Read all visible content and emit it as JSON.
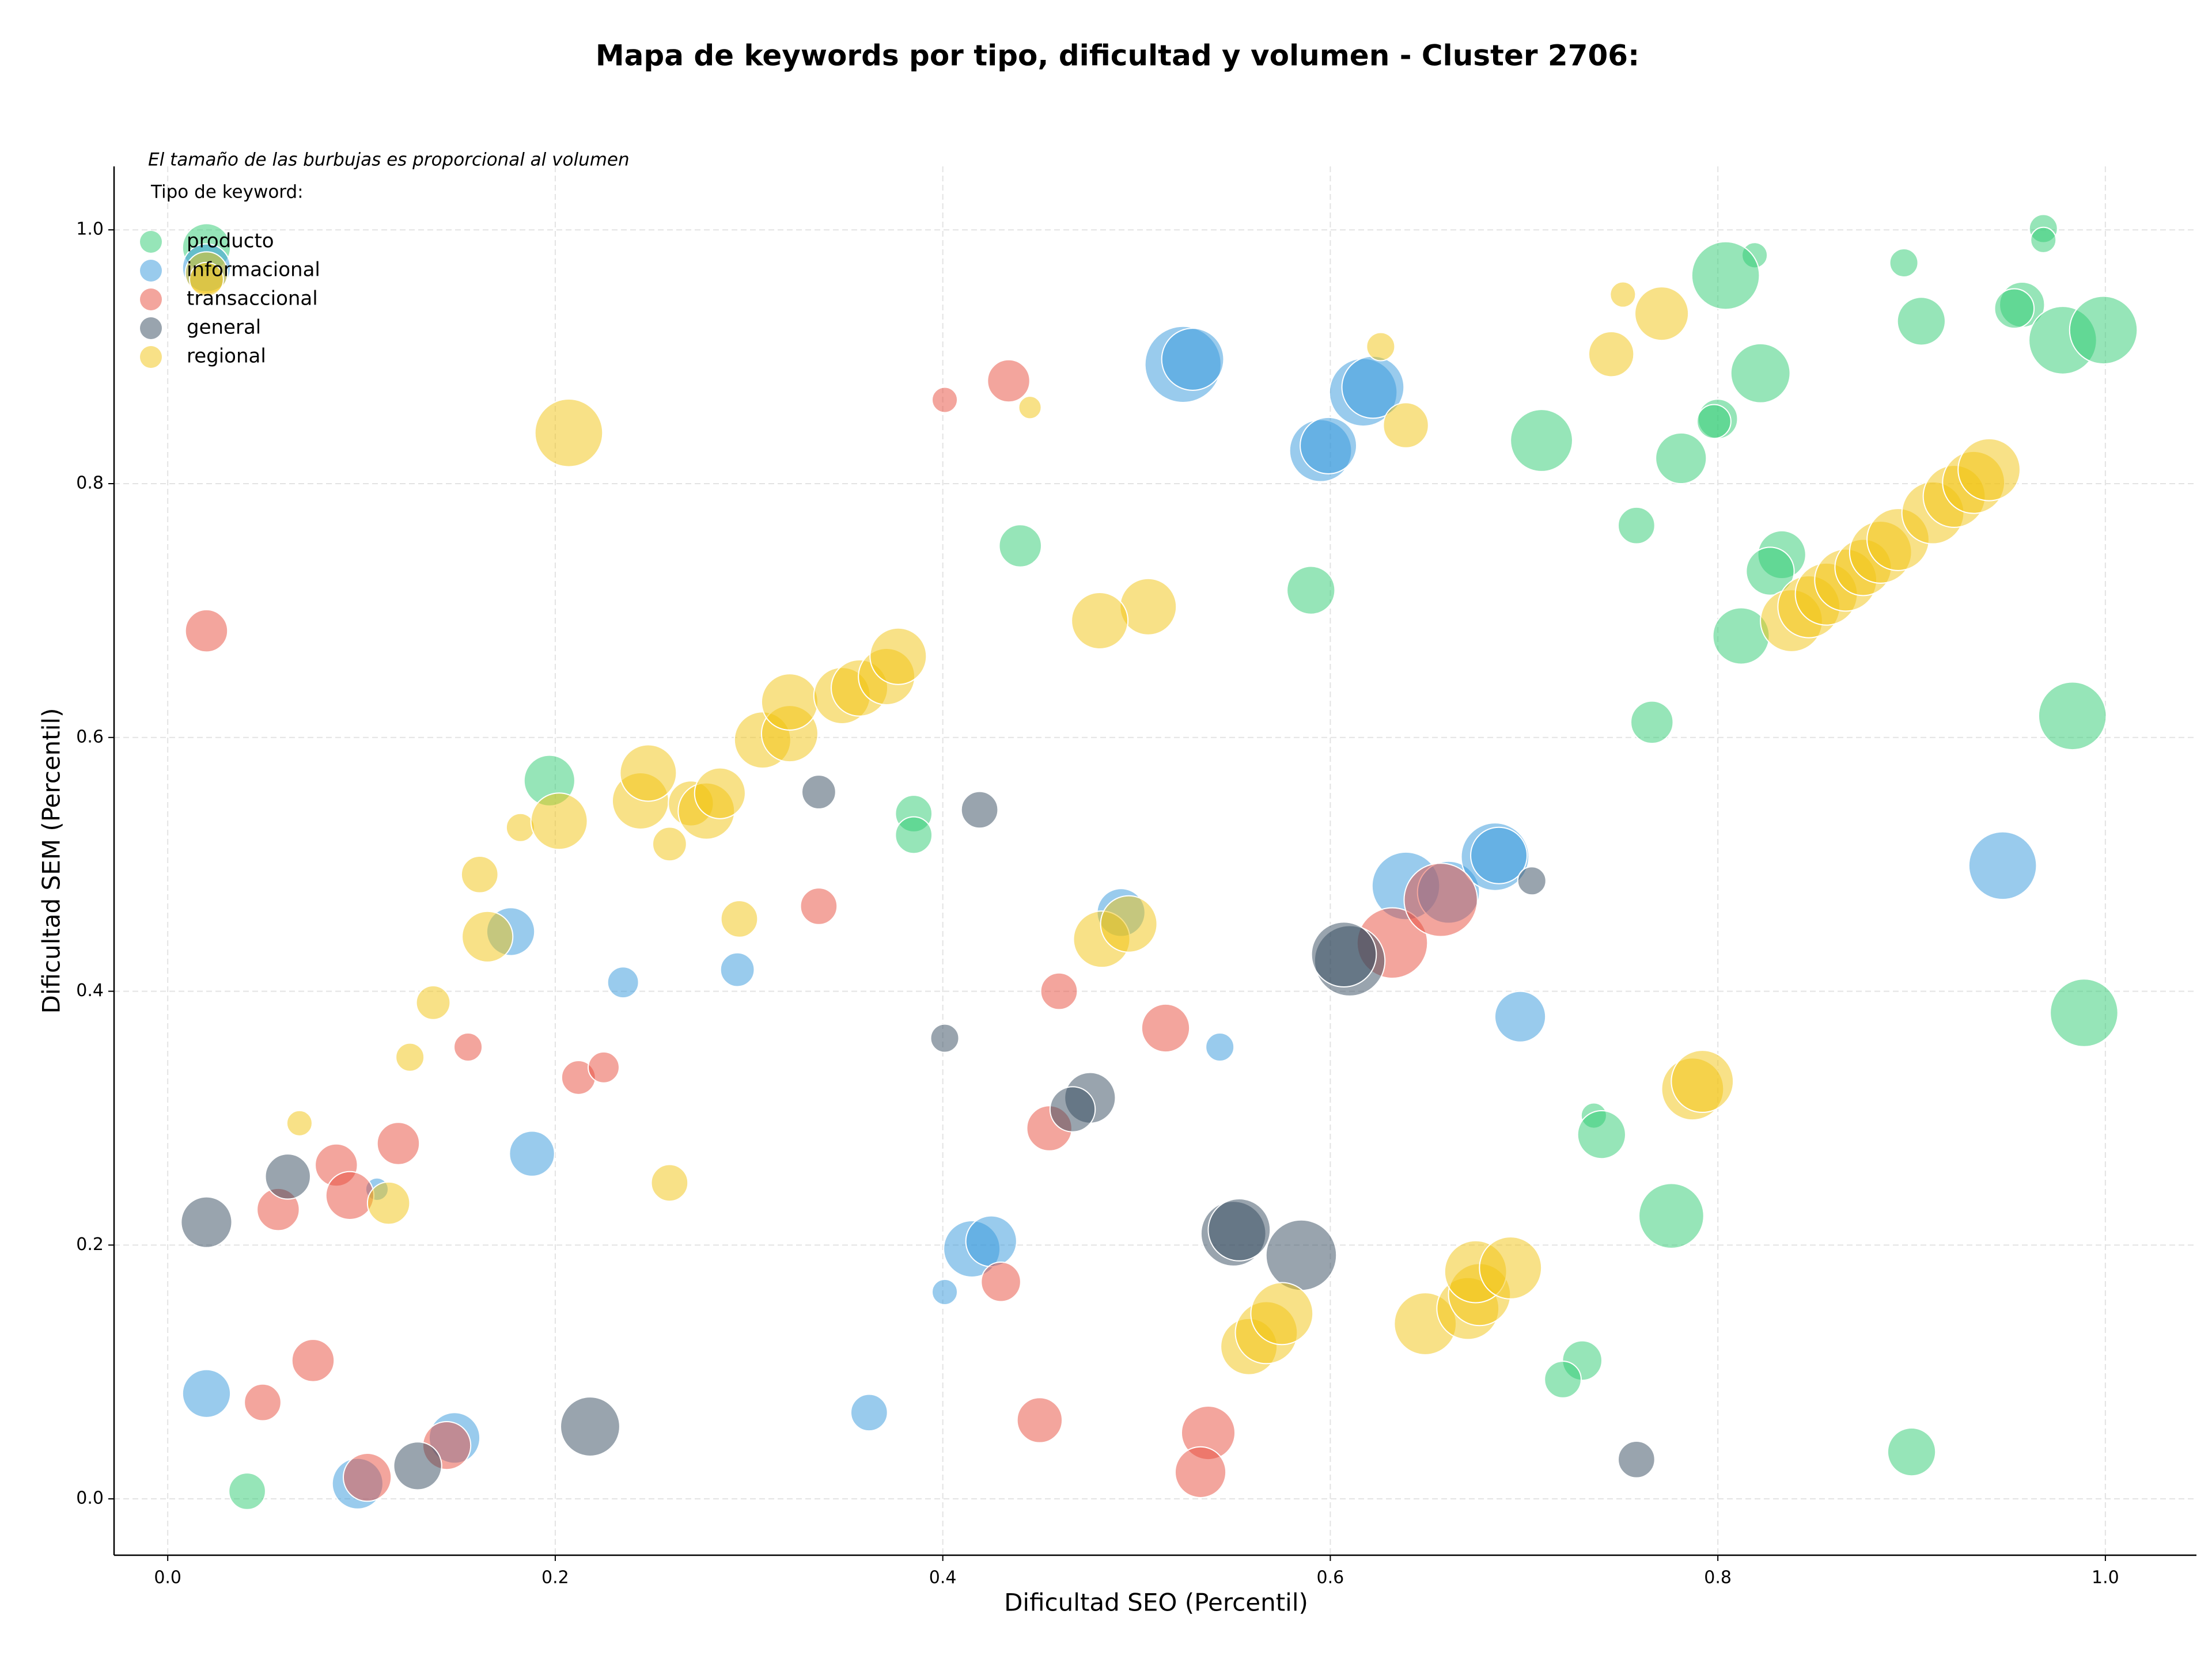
{
  "chart_data": {
    "type": "scatter",
    "title": "Mapa de keywords por tipo, dificultad y volumen - Cluster 2706:",
    "annotation": "El tamaño de las burbujas es proporcional al volumen",
    "x_label": "Dificultad SEO (Percentil)",
    "y_label": "Dificultad SEM (Percentil)",
    "legend_title": "Tipo de keyword:",
    "legend": "upper left",
    "grid": true,
    "xlim": [
      -0.0277,
      1.047
    ],
    "ylim": [
      -0.0444,
      1.05
    ],
    "xticks": [
      {
        "value": 0,
        "label": "0.0"
      },
      0.2,
      0.4,
      0.6,
      0.8,
      {
        "value": 1,
        "label": "1.0"
      }
    ],
    "yticks": [
      {
        "value": 0,
        "label": "0.0"
      },
      0.2,
      0.4,
      0.6,
      0.8,
      {
        "value": 1,
        "label": "1.0"
      }
    ],
    "series": [
      {
        "name": "producto",
        "color": "#2ecc71",
        "x": [
          0.02,
          0.819,
          0.804,
          0.896,
          0.968,
          0.968,
          0.905,
          0.957,
          0.953,
          0.978,
          0.999,
          0.822,
          0.8,
          0.798,
          0.781,
          0.709,
          0.44,
          0.59,
          0.758,
          0.833,
          0.827,
          0.812,
          0.766,
          0.983,
          0.197,
          0.385,
          0.385,
          0.989,
          0.736,
          0.74,
          0.776,
          0.73,
          0.72,
          0.9,
          0.041
        ],
        "values": [
          0.986,
          0.98,
          0.964,
          0.974,
          1.001,
          0.992,
          0.928,
          0.941,
          0.938,
          0.913,
          0.921,
          0.887,
          0.851,
          0.849,
          0.82,
          0.834,
          0.751,
          0.716,
          0.767,
          0.744,
          0.731,
          0.68,
          0.612,
          0.617,
          0.566,
          0.54,
          0.523,
          0.383,
          0.302,
          0.287,
          0.223,
          0.109,
          0.094,
          0.037,
          0.006
        ],
        "sizes": [
          289,
          81,
          576,
          100,
          100,
          81,
          289,
          256,
          196,
          576,
          576,
          441,
          196,
          144,
          324,
          484,
          225,
          289,
          169,
          289,
          289,
          400,
          225,
          576,
          324,
          169,
          169,
          576,
          81,
          289,
          529,
          196,
          169,
          289,
          169
        ]
      },
      {
        "name": "informacional",
        "color": "#3498db",
        "x": [
          0.02,
          0.524,
          0.529,
          0.617,
          0.622,
          0.595,
          0.599,
          0.177,
          0.235,
          0.294,
          0.492,
          0.639,
          0.661,
          0.685,
          0.687,
          0.698,
          0.947,
          0.188,
          0.108,
          0.415,
          0.425,
          0.401,
          0.543,
          0.362,
          0.02,
          0.148,
          0.098
        ],
        "values": [
          0.97,
          0.894,
          0.898,
          0.872,
          0.876,
          0.826,
          0.83,
          0.447,
          0.407,
          0.417,
          0.462,
          0.483,
          0.478,
          0.506,
          0.507,
          0.38,
          0.499,
          0.272,
          0.244,
          0.197,
          0.203,
          0.163,
          0.356,
          0.068,
          0.083,
          0.048,
          0.012
        ],
        "sizes": [
          289,
          729,
          484,
          576,
          484,
          484,
          400,
          289,
          121,
          144,
          289,
          576,
          484,
          576,
          400,
          324,
          576,
          256,
          64,
          400,
          324,
          81,
          100,
          169,
          289,
          324,
          324
        ]
      },
      {
        "name": "transaccional",
        "color": "#e74c3c",
        "x": [
          0.02,
          0.401,
          0.434,
          0.336,
          0.155,
          0.212,
          0.225,
          0.46,
          0.515,
          0.455,
          0.632,
          0.657,
          0.119,
          0.087,
          0.094,
          0.057,
          0.075,
          0.049,
          0.103,
          0.144,
          0.43,
          0.45,
          0.537,
          0.533
        ],
        "values": [
          0.684,
          0.866,
          0.881,
          0.467,
          0.356,
          0.332,
          0.34,
          0.4,
          0.371,
          0.292,
          0.438,
          0.472,
          0.28,
          0.263,
          0.239,
          0.228,
          0.109,
          0.076,
          0.017,
          0.042,
          0.171,
          0.062,
          0.052,
          0.021
        ],
        "sizes": [
          225,
          81,
          225,
          169,
          100,
          144,
          121,
          169,
          289,
          256,
          625,
          676,
          225,
          225,
          289,
          225,
          225,
          169,
          289,
          289,
          196,
          256,
          361,
          324
        ]
      },
      {
        "name": "general",
        "color": "#34495e",
        "x": [
          0.336,
          0.419,
          0.401,
          0.704,
          0.61,
          0.607,
          0.476,
          0.467,
          0.55,
          0.553,
          0.585,
          0.02,
          0.062,
          0.129,
          0.218,
          0.758
        ],
        "values": [
          0.557,
          0.543,
          0.363,
          0.487,
          0.424,
          0.429,
          0.316,
          0.307,
          0.209,
          0.212,
          0.192,
          0.218,
          0.254,
          0.026,
          0.057,
          0.031
        ],
        "sizes": [
          144,
          169,
          100,
          100,
          625,
          529,
          324,
          256,
          529,
          484,
          625,
          324,
          256,
          289,
          441,
          169
        ]
      },
      {
        "name": "regional",
        "color": "#f1c40f",
        "x": [
          0.02,
          0.02,
          0.207,
          0.445,
          0.626,
          0.639,
          0.751,
          0.745,
          0.771,
          0.838,
          0.847,
          0.856,
          0.866,
          0.875,
          0.884,
          0.893,
          0.911,
          0.922,
          0.932,
          0.94,
          0.161,
          0.182,
          0.202,
          0.244,
          0.248,
          0.259,
          0.27,
          0.278,
          0.285,
          0.307,
          0.321,
          0.321,
          0.348,
          0.357,
          0.371,
          0.377,
          0.165,
          0.137,
          0.125,
          0.068,
          0.114,
          0.295,
          0.259,
          0.482,
          0.496,
          0.506,
          0.481,
          0.787,
          0.792,
          0.649,
          0.671,
          0.677,
          0.675,
          0.693,
          0.558,
          0.567,
          0.575
        ],
        "values": [
          0.966,
          0.961,
          0.84,
          0.86,
          0.908,
          0.846,
          0.949,
          0.902,
          0.934,
          0.692,
          0.703,
          0.713,
          0.724,
          0.734,
          0.746,
          0.756,
          0.777,
          0.79,
          0.801,
          0.811,
          0.492,
          0.529,
          0.534,
          0.55,
          0.572,
          0.516,
          0.548,
          0.542,
          0.556,
          0.598,
          0.603,
          0.628,
          0.633,
          0.639,
          0.648,
          0.664,
          0.443,
          0.391,
          0.348,
          0.296,
          0.233,
          0.457,
          0.249,
          0.441,
          0.453,
          0.703,
          0.692,
          0.323,
          0.329,
          0.138,
          0.15,
          0.161,
          0.179,
          0.182,
          0.12,
          0.131,
          0.146
        ],
        "sizes": [
          225,
          144,
          576,
          64,
          100,
          256,
          81,
          256,
          361,
          484,
          484,
          484,
          484,
          400,
          484,
          484,
          484,
          484,
          484,
          484,
          169,
          100,
          400,
          400,
          400,
          144,
          256,
          400,
          324,
          400,
          400,
          400,
          400,
          400,
          400,
          400,
          324,
          144,
          100,
          81,
          225,
          169,
          169,
          400,
          400,
          400,
          400,
          484,
          484,
          484,
          484,
          484,
          484,
          484,
          400,
          484,
          484
        ]
      }
    ]
  }
}
